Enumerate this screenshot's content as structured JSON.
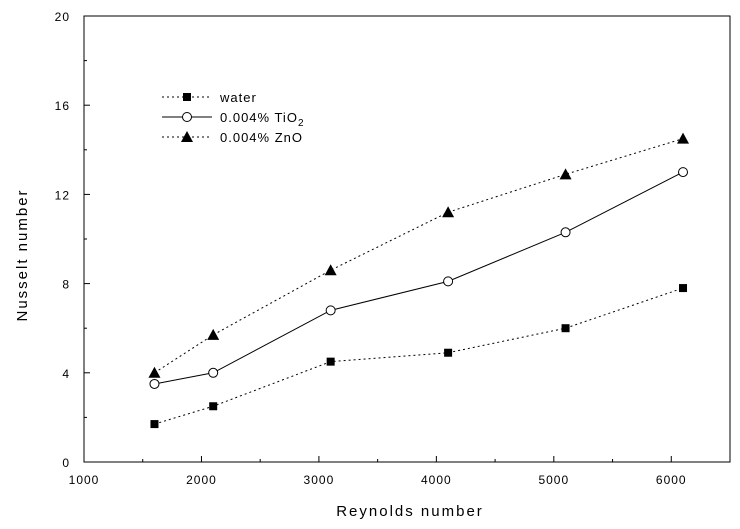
{
  "chart_data": {
    "type": "line",
    "xlabel": "Reynolds number",
    "ylabel": "Nusselt number",
    "xlim": [
      1000,
      6500
    ],
    "ylim": [
      0,
      20
    ],
    "x_ticks": [
      1000,
      2000,
      3000,
      4000,
      5000,
      6000
    ],
    "y_ticks": [
      0,
      4,
      8,
      12,
      16,
      20
    ],
    "grid": false,
    "legend_position": "top-left",
    "x": [
      1600,
      2100,
      3100,
      4100,
      5100,
      6100
    ],
    "series": [
      {
        "name": "water",
        "values": [
          1.7,
          2.5,
          4.5,
          4.9,
          6.0,
          7.8
        ],
        "line_style": "dotted",
        "marker": "filled-square",
        "color": "#000000"
      },
      {
        "name": "0.004% TiO",
        "name_subscript": "2",
        "values": [
          3.5,
          4.0,
          6.8,
          8.1,
          10.3,
          13.0
        ],
        "line_style": "solid",
        "marker": "open-circle",
        "color": "#000000"
      },
      {
        "name": "0.004% ZnO",
        "values": [
          4.0,
          5.7,
          8.6,
          11.2,
          12.9,
          14.5
        ],
        "line_style": "dotted",
        "marker": "filled-triangle",
        "color": "#000000"
      }
    ]
  }
}
